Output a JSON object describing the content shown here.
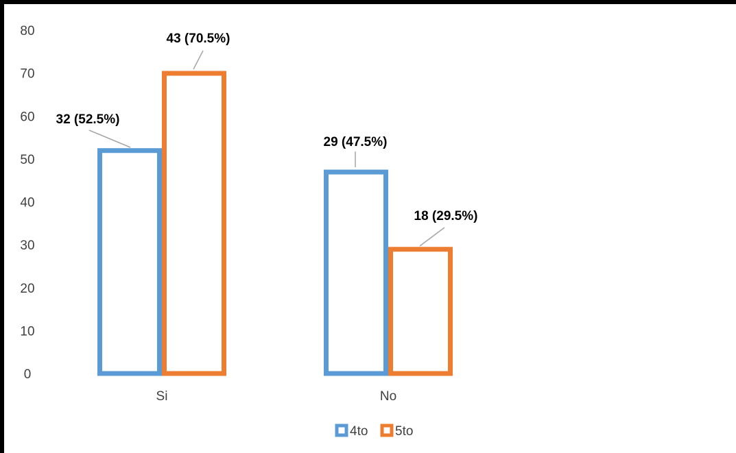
{
  "chart_data": {
    "type": "bar",
    "categories": [
      "Si",
      "No"
    ],
    "series": [
      {
        "name": "4to",
        "values": [
          52.5,
          47.5
        ],
        "labels": [
          "32 (52.5%)",
          "29 (47.5%)"
        ],
        "color": "#5B9BD5"
      },
      {
        "name": "5to",
        "values": [
          70.5,
          29.5
        ],
        "labels": [
          "43 (70.5%)",
          "18 (29.5%)"
        ],
        "color": "#ED7D31"
      }
    ],
    "ylim": [
      0,
      80
    ],
    "yticks": [
      "0",
      "10",
      "20",
      "30",
      "40",
      "50",
      "60",
      "70",
      "80"
    ],
    "bar_style": "outline",
    "grid": false,
    "legend_position": "bottom"
  }
}
